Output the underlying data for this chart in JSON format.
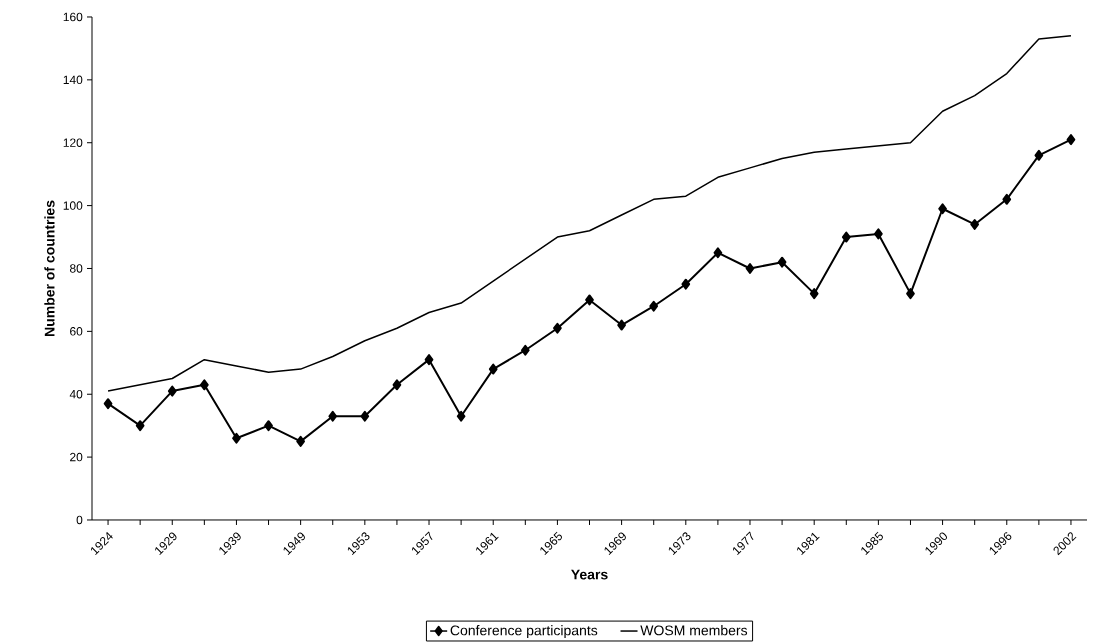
{
  "chart_data": {
    "type": "line",
    "xlabel": "Years",
    "ylabel": "Number of countries",
    "categories": [
      "1924",
      null,
      "1929",
      null,
      "1939",
      null,
      "1949",
      null,
      "1953",
      null,
      "1957",
      null,
      "1961",
      null,
      "1965",
      null,
      "1969",
      null,
      "1973",
      null,
      "1977",
      null,
      "1981",
      null,
      "1985",
      null,
      "1990",
      null,
      "1996",
      null,
      "2002"
    ],
    "series": [
      {
        "name": "Conference participants",
        "color": "#000000",
        "marker": "diamond",
        "values": [
          37,
          30,
          41,
          43,
          26,
          30,
          25,
          33,
          33,
          43,
          51,
          33,
          48,
          54,
          61,
          70,
          62,
          68,
          75,
          85,
          80,
          82,
          72,
          90,
          91,
          72,
          99,
          94,
          102,
          116,
          121
        ]
      },
      {
        "name": "WOSM members",
        "color": "#000000",
        "marker": "none",
        "values": [
          41,
          43,
          45,
          51,
          49,
          47,
          48,
          52,
          57,
          61,
          66,
          69,
          76,
          83,
          90,
          92,
          97,
          102,
          103,
          109,
          112,
          115,
          117,
          118,
          119,
          120,
          130,
          135,
          142,
          153,
          154
        ]
      }
    ],
    "ylim": [
      0,
      160
    ],
    "yticks": [
      0,
      20,
      40,
      60,
      80,
      100,
      120,
      140,
      160
    ],
    "legend": "bottom",
    "grid": false
  }
}
